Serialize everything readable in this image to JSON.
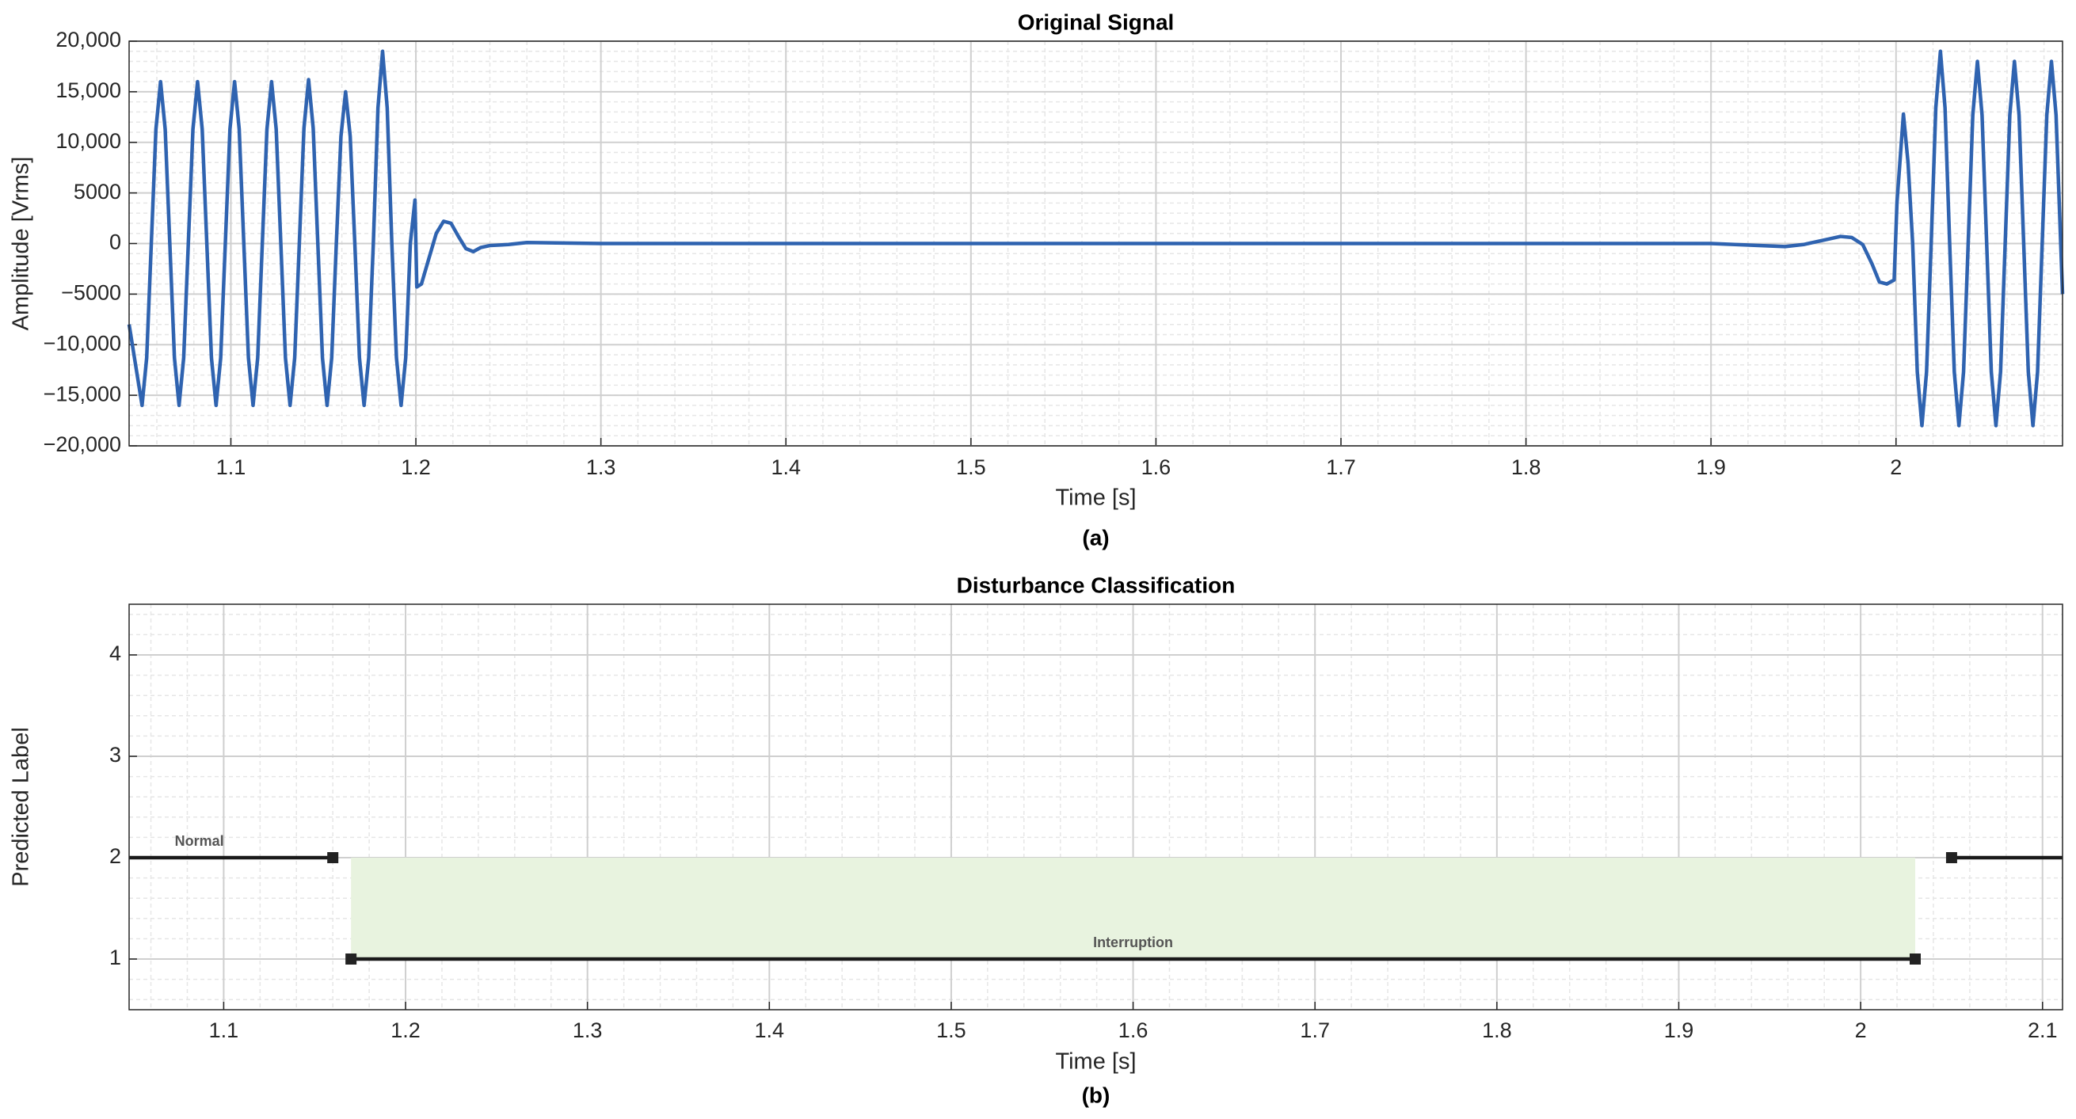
{
  "chart_data": [
    {
      "type": "line",
      "title": "Original Signal",
      "xlabel": "Time [s]",
      "ylabel": "Amplitude [Vrms]",
      "caption": "(a)",
      "color": "#2f63b0",
      "grid": true,
      "minor_grid": true,
      "xlim": [
        1.045,
        2.09
      ],
      "xticks": [
        1.1,
        1.2,
        1.3,
        1.4,
        1.5,
        1.6,
        1.7,
        1.8,
        1.9,
        2
      ],
      "ylim": [
        -20000,
        20000
      ],
      "yticks": [
        {
          "value": -20000,
          "label": "−20,000"
        },
        {
          "value": -15000,
          "label": "−15,000"
        },
        {
          "value": -10000,
          "label": "−10,000"
        },
        {
          "value": -5000,
          "label": "−5000"
        },
        0,
        5000,
        {
          "value": 10000,
          "label": "10,000"
        },
        {
          "value": 15000,
          "label": "15,000"
        },
        {
          "value": 20000,
          "label": "20,000"
        }
      ],
      "x": [
        1.045,
        1.052,
        1.0545,
        1.057,
        1.0595,
        1.062,
        1.0645,
        1.067,
        1.0695,
        1.072,
        1.0745,
        1.077,
        1.0795,
        1.082,
        1.0845,
        1.087,
        1.0895,
        1.092,
        1.0945,
        1.097,
        1.0995,
        1.102,
        1.1045,
        1.107,
        1.1095,
        1.112,
        1.1145,
        1.117,
        1.1195,
        1.122,
        1.1245,
        1.127,
        1.1295,
        1.132,
        1.1345,
        1.137,
        1.1395,
        1.142,
        1.1445,
        1.147,
        1.1495,
        1.152,
        1.1545,
        1.157,
        1.1595,
        1.162,
        1.1645,
        1.167,
        1.1695,
        1.172,
        1.1745,
        1.177,
        1.1795,
        1.182,
        1.1845,
        1.187,
        1.1895,
        1.192,
        1.1945,
        1.197,
        1.1995,
        1.2005,
        1.203,
        1.207,
        1.211,
        1.215,
        1.219,
        1.223,
        1.227,
        1.231,
        1.235,
        1.24,
        1.25,
        1.26,
        1.3,
        1.4,
        1.5,
        1.6,
        1.7,
        1.8,
        1.9,
        1.94,
        1.95,
        1.96,
        1.97,
        1.976,
        1.982,
        1.987,
        1.991,
        1.995,
        1.999,
        2.0005,
        2.004,
        2.0065,
        2.009,
        2.0115,
        2.014,
        2.0165,
        2.019,
        2.0215,
        2.024,
        2.0265,
        2.029,
        2.0315,
        2.034,
        2.0365,
        2.039,
        2.0415,
        2.044,
        2.0465,
        2.049,
        2.0515,
        2.054,
        2.0565,
        2.059,
        2.0615,
        2.064,
        2.0665,
        2.069,
        2.0715,
        2.074,
        2.0765,
        2.079,
        2.0815,
        2.084,
        2.0865,
        2.09
      ],
      "values": [
        -8000,
        -16000,
        -11300,
        0,
        11300,
        16000,
        11300,
        0,
        -11300,
        -16000,
        -11300,
        0,
        11300,
        16000,
        11300,
        0,
        -11300,
        -16000,
        -11300,
        0,
        11300,
        16000,
        11300,
        0,
        -11300,
        -16000,
        -11300,
        0,
        11300,
        16000,
        11300,
        0,
        -11300,
        -16000,
        -11300,
        0,
        11400,
        16200,
        11400,
        0,
        -11300,
        -16000,
        -11300,
        0,
        10600,
        15000,
        10600,
        0,
        -11300,
        -16000,
        -11300,
        0,
        13400,
        19000,
        13400,
        0,
        -11300,
        -16000,
        -11300,
        0,
        4300,
        -4300,
        -4000,
        -1500,
        1000,
        2200,
        2000,
        700,
        -500,
        -800,
        -400,
        -200,
        -100,
        100,
        0,
        0,
        0,
        0,
        0,
        0,
        0,
        -300,
        -100,
        300,
        700,
        600,
        -100,
        -2000,
        -3800,
        -4000,
        -3600,
        4000,
        12800,
        8000,
        0,
        -12700,
        -18000,
        -12700,
        0,
        13400,
        19000,
        13400,
        0,
        -12700,
        -18000,
        -12700,
        0,
        12700,
        18000,
        12700,
        0,
        -12700,
        -18000,
        -12700,
        0,
        12700,
        18000,
        12700,
        0,
        -12700,
        -18000,
        -12700,
        0,
        12700,
        18000,
        12700,
        -5000
      ]
    },
    {
      "type": "segments",
      "title": "Disturbance Classification",
      "xlabel": "Time [s]",
      "ylabel": "Predicted Label",
      "caption": "(b)",
      "color": "#1a1a1a",
      "grid": true,
      "minor_grid": true,
      "xlim": [
        1.048,
        2.111
      ],
      "xticks": [
        1.1,
        1.2,
        1.3,
        1.4,
        1.5,
        1.6,
        1.7,
        1.8,
        1.9,
        2,
        2.1
      ],
      "ylim": [
        0.5,
        4.5
      ],
      "yticks": [
        1,
        2,
        3,
        4
      ],
      "shade": {
        "x": [
          1.17,
          2.03
        ],
        "y": [
          1,
          2
        ],
        "color": "#e8f3df"
      },
      "segments": [
        {
          "label": "Normal",
          "x": [
            1.048,
            1.16
          ],
          "y": [
            2,
            2
          ]
        },
        {
          "label": "Interruption",
          "x": [
            1.17,
            2.03
          ],
          "y": [
            1,
            1
          ]
        },
        {
          "x": [
            2.05,
            2.111
          ],
          "y": [
            2,
            2
          ]
        }
      ]
    }
  ]
}
